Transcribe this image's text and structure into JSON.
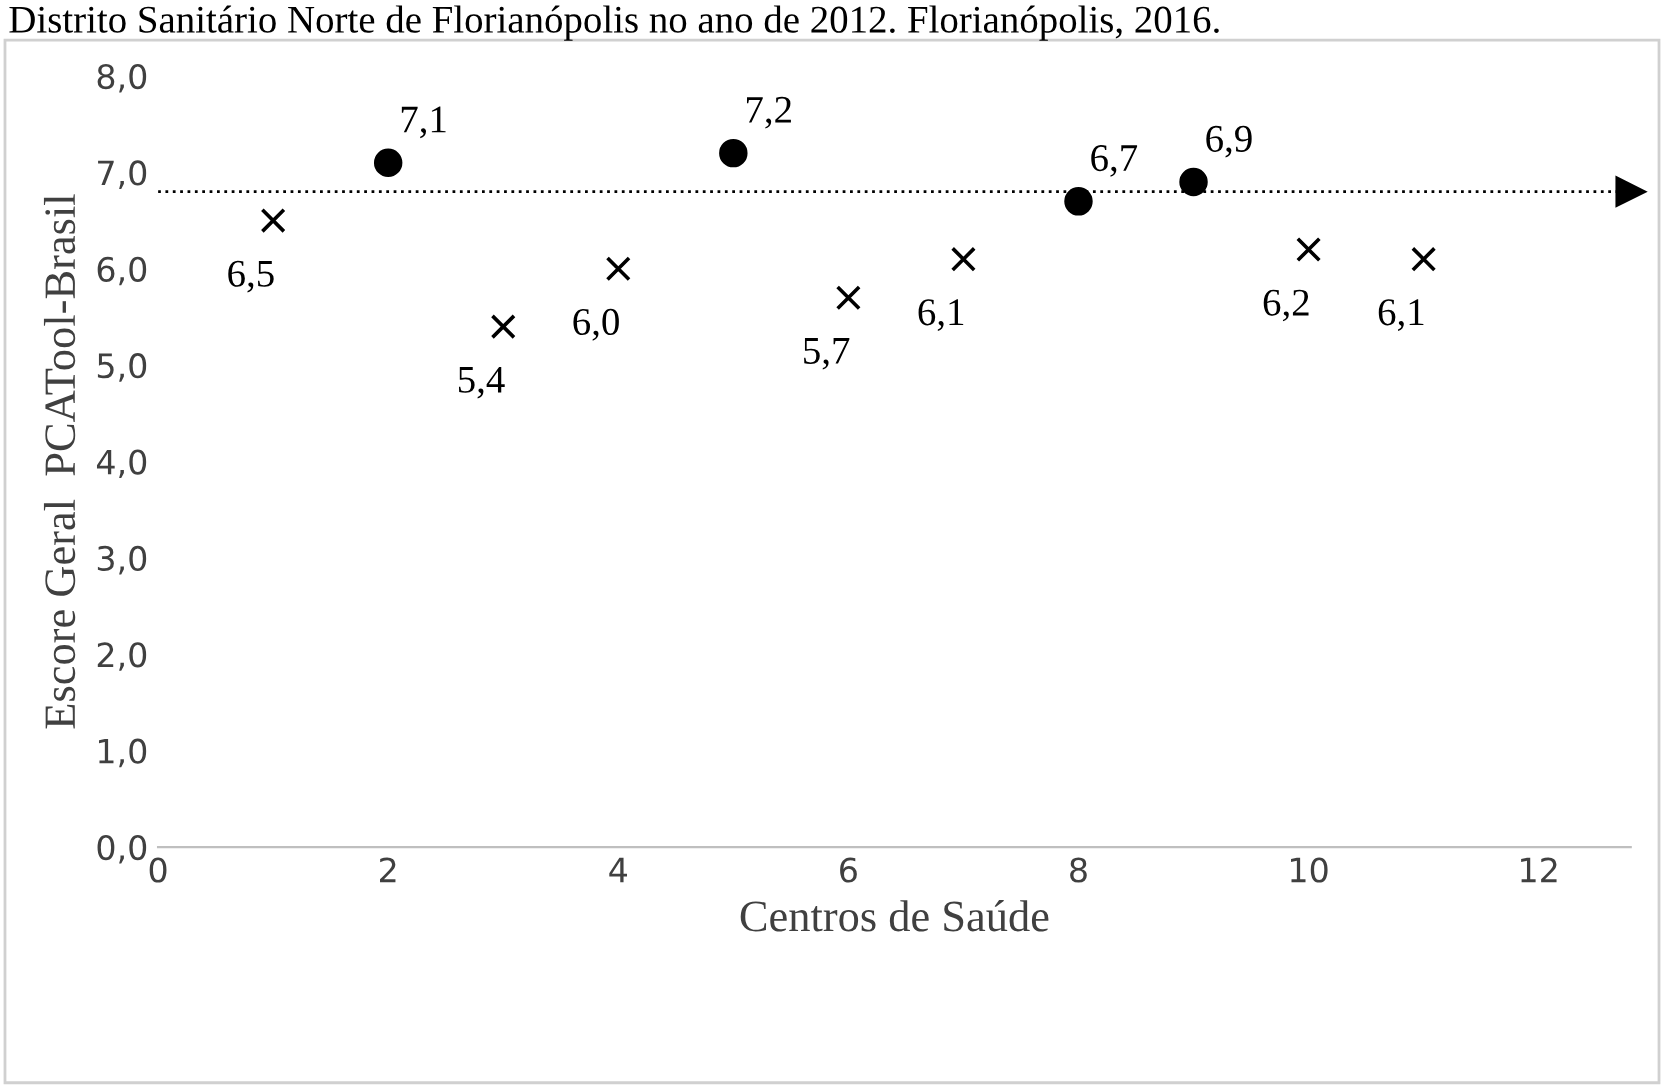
{
  "chart_data": {
    "type": "scatter",
    "title": "Distrito Sanitário Norte de Florianópolis no ano de 2012. Florianópolis, 2016.",
    "xlabel": "Centros de Saúde",
    "ylabel": "Escore Geral  PCATool-Brasil",
    "series": [
      {
        "marker": "cross",
        "color": "#000000",
        "x": [
          1,
          3,
          4,
          6,
          7,
          10,
          11
        ],
        "values": [
          6.5,
          5.4,
          6.0,
          5.7,
          6.1,
          6.2,
          6.1
        ],
        "value_labels": [
          "6,5",
          "5,4",
          "6,0",
          "5,7",
          "6,1",
          "6,2",
          "6,1"
        ]
      },
      {
        "marker": "circle",
        "color": "#000000",
        "x": [
          2,
          5,
          8,
          9
        ],
        "values": [
          7.1,
          7.2,
          6.7,
          6.9
        ],
        "value_labels": [
          "7,1",
          "7,2",
          "6,7",
          "6,9"
        ]
      }
    ],
    "ref_lines": [
      {
        "axis": "y",
        "value": 6.8,
        "line_style": "dotted",
        "color": "#000000"
      }
    ],
    "xlim": [
      0,
      12.8
    ],
    "xticks": [
      0,
      2,
      4,
      6,
      8,
      10,
      12
    ],
    "ylim": [
      0,
      8
    ],
    "yticks": [
      {
        "value": 0,
        "label": "0,0"
      },
      {
        "value": 1,
        "label": "1,0"
      },
      {
        "value": 2,
        "label": "2,0"
      },
      {
        "value": 3,
        "label": "3,0"
      },
      {
        "value": 4,
        "label": "4,0"
      },
      {
        "value": 5,
        "label": "5,0"
      },
      {
        "value": 6,
        "label": "6,0"
      },
      {
        "value": 7,
        "label": "7,0"
      },
      {
        "value": 8,
        "label": "8,0"
      }
    ],
    "grid": false,
    "legend": false
  }
}
